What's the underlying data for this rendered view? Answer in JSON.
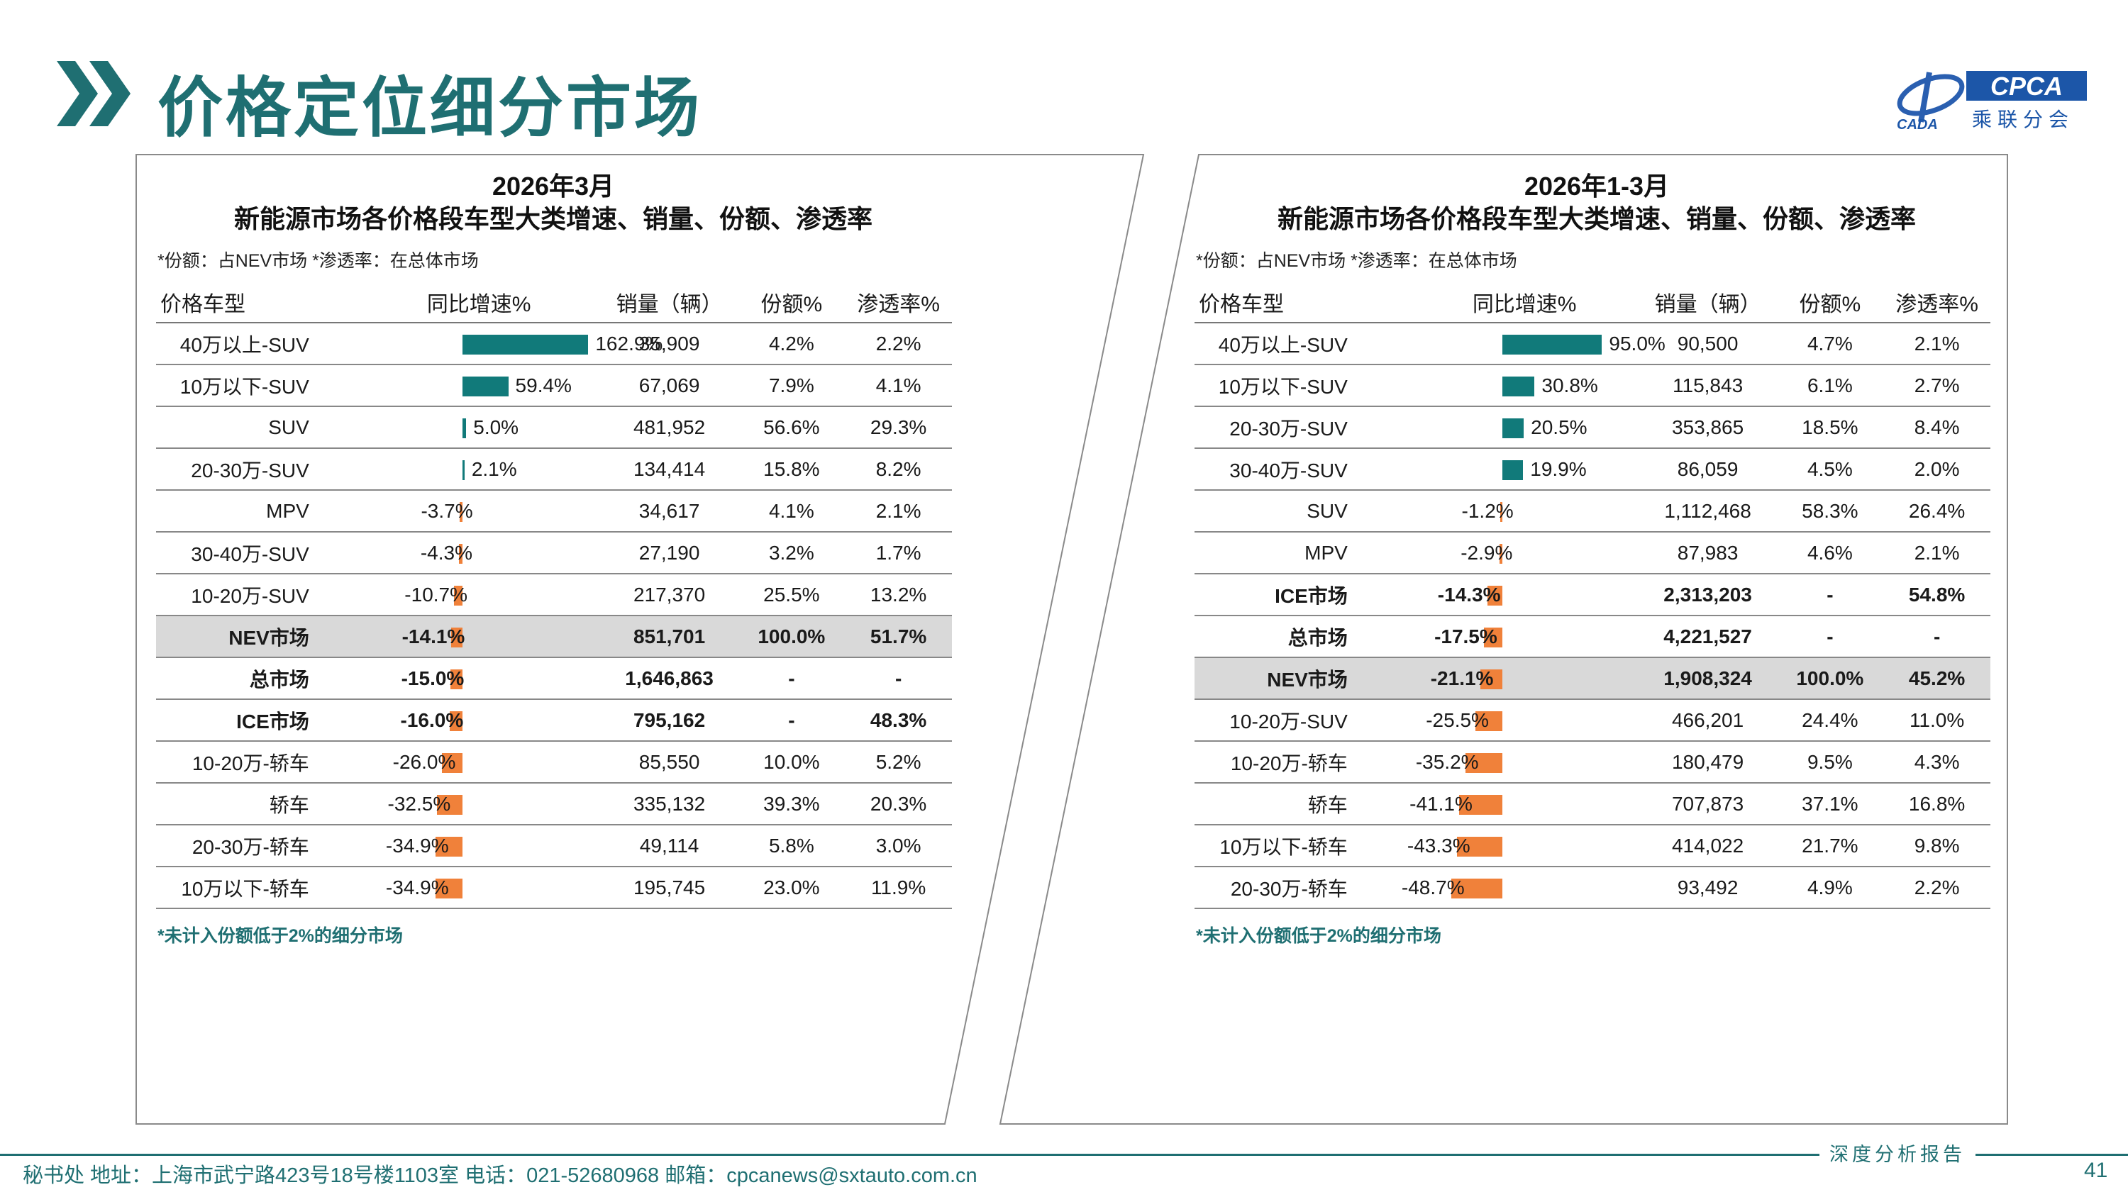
{
  "page": {
    "title": "价格定位细分市场",
    "logo_text": "CPCA",
    "logo_sub": "乘联分会",
    "logo_script": "CADA",
    "report_tag": "深度分析报告",
    "footer": "秘书处   地址：上海市武宁路423号18号楼1103室   电话：021-52680968    邮箱：cpcanews@sxtauto.com.cn",
    "page_number": "41",
    "colors": {
      "teal": "#117a7a",
      "orange": "#f0813a",
      "title": "#1f6f72",
      "highlight_row": "#d9d9d9"
    }
  },
  "chart_data": [
    {
      "type": "table",
      "title": "2026年3月",
      "subtitle": "新能源市场各价格段车型大类增速、销量、份额、渗透率",
      "note": "*份额：占NEV市场   *渗透率：在总体市场",
      "footnote": "*未计入份额低于2%的细分市场",
      "columns": [
        "价格车型",
        "同比增速%",
        "销量（辆）",
        "份额%",
        "渗透率%"
      ],
      "rows": [
        {
          "category": "40万以上-SUV",
          "growth": 162.9,
          "growth_label": "162.9%",
          "sales": "35,909",
          "share": "4.2%",
          "penetration": "2.2%",
          "style": ""
        },
        {
          "category": "10万以下-SUV",
          "growth": 59.4,
          "growth_label": "59.4%",
          "sales": "67,069",
          "share": "7.9%",
          "penetration": "4.1%",
          "style": ""
        },
        {
          "category": "SUV",
          "growth": 5.0,
          "growth_label": "5.0%",
          "sales": "481,952",
          "share": "56.6%",
          "penetration": "29.3%",
          "style": ""
        },
        {
          "category": "20-30万-SUV",
          "growth": 2.1,
          "growth_label": "2.1%",
          "sales": "134,414",
          "share": "15.8%",
          "penetration": "8.2%",
          "style": ""
        },
        {
          "category": "MPV",
          "growth": -3.7,
          "growth_label": "-3.7%",
          "sales": "34,617",
          "share": "4.1%",
          "penetration": "2.1%",
          "style": ""
        },
        {
          "category": "30-40万-SUV",
          "growth": -4.3,
          "growth_label": "-4.3%",
          "sales": "27,190",
          "share": "3.2%",
          "penetration": "1.7%",
          "style": ""
        },
        {
          "category": "10-20万-SUV",
          "growth": -10.7,
          "growth_label": "-10.7%",
          "sales": "217,370",
          "share": "25.5%",
          "penetration": "13.2%",
          "style": ""
        },
        {
          "category": "NEV市场",
          "growth": -14.1,
          "growth_label": "-14.1%",
          "sales": "851,701",
          "share": "100.0%",
          "penetration": "51.7%",
          "style": "highlight"
        },
        {
          "category": "总市场",
          "growth": -15.0,
          "growth_label": "-15.0%",
          "sales": "1,646,863",
          "share": "-",
          "penetration": "-",
          "style": "bold"
        },
        {
          "category": "ICE市场",
          "growth": -16.0,
          "growth_label": "-16.0%",
          "sales": "795,162",
          "share": "-",
          "penetration": "48.3%",
          "style": "bold"
        },
        {
          "category": "10-20万-轿车",
          "growth": -26.0,
          "growth_label": "-26.0%",
          "sales": "85,550",
          "share": "10.0%",
          "penetration": "5.2%",
          "style": ""
        },
        {
          "category": "轿车",
          "growth": -32.5,
          "growth_label": "-32.5%",
          "sales": "335,132",
          "share": "39.3%",
          "penetration": "20.3%",
          "style": ""
        },
        {
          "category": "20-30万-轿车",
          "growth": -34.9,
          "growth_label": "-34.9%",
          "sales": "49,114",
          "share": "5.8%",
          "penetration": "3.0%",
          "style": ""
        },
        {
          "category": "10万以下-轿车",
          "growth": -34.9,
          "growth_label": "-34.9%",
          "sales": "195,745",
          "share": "23.0%",
          "penetration": "11.9%",
          "style": ""
        }
      ]
    },
    {
      "type": "table",
      "title": "2026年1-3月",
      "subtitle": "新能源市场各价格段车型大类增速、销量、份额、渗透率",
      "note": "*份额：占NEV市场   *渗透率：在总体市场",
      "footnote": "*未计入份额低于2%的细分市场",
      "columns": [
        "价格车型",
        "同比增速%",
        "销量（辆）",
        "份额%",
        "渗透率%"
      ],
      "rows": [
        {
          "category": "40万以上-SUV",
          "growth": 95.0,
          "growth_label": "95.0%",
          "sales": "90,500",
          "share": "4.7%",
          "penetration": "2.1%",
          "style": ""
        },
        {
          "category": "10万以下-SUV",
          "growth": 30.8,
          "growth_label": "30.8%",
          "sales": "115,843",
          "share": "6.1%",
          "penetration": "2.7%",
          "style": ""
        },
        {
          "category": "20-30万-SUV",
          "growth": 20.5,
          "growth_label": "20.5%",
          "sales": "353,865",
          "share": "18.5%",
          "penetration": "8.4%",
          "style": ""
        },
        {
          "category": "30-40万-SUV",
          "growth": 19.9,
          "growth_label": "19.9%",
          "sales": "86,059",
          "share": "4.5%",
          "penetration": "2.0%",
          "style": ""
        },
        {
          "category": "SUV",
          "growth": -1.2,
          "growth_label": "-1.2%",
          "sales": "1,112,468",
          "share": "58.3%",
          "penetration": "26.4%",
          "style": ""
        },
        {
          "category": "MPV",
          "growth": -2.9,
          "growth_label": "-2.9%",
          "sales": "87,983",
          "share": "4.6%",
          "penetration": "2.1%",
          "style": ""
        },
        {
          "category": "ICE市场",
          "growth": -14.3,
          "growth_label": "-14.3%",
          "sales": "2,313,203",
          "share": "-",
          "penetration": "54.8%",
          "style": "bold"
        },
        {
          "category": "总市场",
          "growth": -17.5,
          "growth_label": "-17.5%",
          "sales": "4,221,527",
          "share": "-",
          "penetration": "-",
          "style": "bold"
        },
        {
          "category": "NEV市场",
          "growth": -21.1,
          "growth_label": "-21.1%",
          "sales": "1,908,324",
          "share": "100.0%",
          "penetration": "45.2%",
          "style": "highlight"
        },
        {
          "category": "10-20万-SUV",
          "growth": -25.5,
          "growth_label": "-25.5%",
          "sales": "466,201",
          "share": "24.4%",
          "penetration": "11.0%",
          "style": ""
        },
        {
          "category": "10-20万-轿车",
          "growth": -35.2,
          "growth_label": "-35.2%",
          "sales": "180,479",
          "share": "9.5%",
          "penetration": "4.3%",
          "style": ""
        },
        {
          "category": "轿车",
          "growth": -41.1,
          "growth_label": "-41.1%",
          "sales": "707,873",
          "share": "37.1%",
          "penetration": "16.8%",
          "style": ""
        },
        {
          "category": "10万以下-轿车",
          "growth": -43.3,
          "growth_label": "-43.3%",
          "sales": "414,022",
          "share": "21.7%",
          "penetration": "9.8%",
          "style": ""
        },
        {
          "category": "20-30万-轿车",
          "growth": -48.7,
          "growth_label": "-48.7%",
          "sales": "93,492",
          "share": "4.9%",
          "penetration": "2.2%",
          "style": ""
        }
      ]
    }
  ]
}
